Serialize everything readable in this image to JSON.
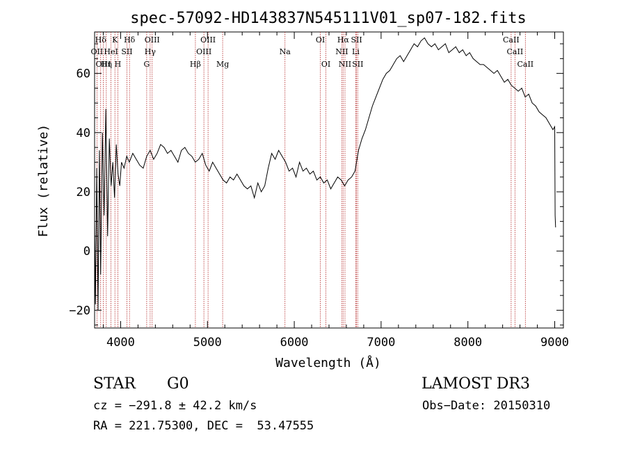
{
  "chart_data": {
    "type": "line",
    "title": "spec-57092-HD143837N545111V01_sp07-182.fits",
    "xlabel": "Wavelength (Å)",
    "ylabel": "Flux (relative)",
    "xlim": [
      3700,
      9100
    ],
    "ylim": [
      -26,
      74
    ],
    "xticks": [
      4000,
      5000,
      6000,
      7000,
      8000,
      9000
    ],
    "yticks": [
      -20,
      0,
      20,
      40,
      60
    ],
    "grid": false,
    "series": [
      {
        "name": "spectrum",
        "x": [
          3700,
          3710,
          3725,
          3740,
          3755,
          3770,
          3790,
          3810,
          3830,
          3850,
          3870,
          3890,
          3910,
          3930,
          3950,
          3970,
          3990,
          4010,
          4040,
          4070,
          4100,
          4140,
          4180,
          4220,
          4260,
          4300,
          4340,
          4380,
          4420,
          4460,
          4500,
          4540,
          4580,
          4620,
          4660,
          4700,
          4740,
          4780,
          4820,
          4860,
          4900,
          4940,
          4980,
          5020,
          5060,
          5100,
          5140,
          5180,
          5220,
          5260,
          5300,
          5340,
          5380,
          5420,
          5460,
          5500,
          5540,
          5580,
          5620,
          5660,
          5700,
          5740,
          5780,
          5820,
          5860,
          5900,
          5940,
          5980,
          6020,
          6060,
          6100,
          6140,
          6180,
          6220,
          6260,
          6300,
          6340,
          6380,
          6420,
          6460,
          6500,
          6540,
          6560,
          6580,
          6620,
          6660,
          6700,
          6740,
          6780,
          6820,
          6860,
          6900,
          6940,
          6980,
          7020,
          7060,
          7100,
          7140,
          7180,
          7220,
          7260,
          7300,
          7340,
          7380,
          7420,
          7460,
          7500,
          7540,
          7580,
          7620,
          7660,
          7700,
          7740,
          7780,
          7820,
          7860,
          7900,
          7940,
          7980,
          8020,
          8060,
          8100,
          8140,
          8180,
          8220,
          8260,
          8300,
          8340,
          8380,
          8420,
          8460,
          8500,
          8540,
          8580,
          8620,
          8660,
          8700,
          8740,
          8780,
          8820,
          8860,
          8900,
          8940,
          8980,
          9000,
          9005,
          9010
        ],
        "values": [
          10,
          -18,
          28,
          -20,
          34,
          -8,
          40,
          12,
          48,
          5,
          38,
          22,
          30,
          18,
          36,
          26,
          22,
          30,
          28,
          32,
          30,
          33,
          31,
          29,
          28,
          32,
          34,
          31,
          33,
          36,
          35,
          33,
          34,
          32,
          30,
          34,
          35,
          33,
          32,
          30,
          31,
          33,
          29,
          27,
          30,
          28,
          26,
          24,
          23,
          25,
          24,
          26,
          24,
          22,
          21,
          22,
          18,
          23,
          20,
          22,
          28,
          33,
          31,
          34,
          32,
          30,
          27,
          28,
          25,
          30,
          27,
          28,
          26,
          27,
          24,
          25,
          23,
          24,
          21,
          23,
          25,
          24,
          23,
          22,
          24,
          25,
          27,
          34,
          38,
          41,
          45,
          49,
          52,
          55,
          58,
          60,
          61,
          63,
          65,
          66,
          64,
          66,
          68,
          70,
          69,
          71,
          72,
          70,
          69,
          70,
          68,
          69,
          70,
          67,
          68,
          69,
          67,
          68,
          66,
          67,
          65,
          64,
          63,
          63,
          62,
          61,
          60,
          61,
          59,
          57,
          58,
          56,
          55,
          54,
          55,
          52,
          53,
          50,
          49,
          47,
          46,
          45,
          43,
          41,
          42,
          12,
          8
        ]
      }
    ],
    "spectral_lines": [
      {
        "label": "Hδ",
        "wavelength": 3770,
        "row": 1
      },
      {
        "label": "K",
        "wavelength": 3934,
        "row": 1
      },
      {
        "label": "Hδ",
        "wavelength": 4102,
        "row": 1
      },
      {
        "label": "OIII",
        "wavelength": 4363,
        "row": 1
      },
      {
        "label": "OIII",
        "wavelength": 5007,
        "row": 1
      },
      {
        "label": "OI",
        "wavelength": 6300,
        "row": 1
      },
      {
        "label": "Hα",
        "wavelength": 6563,
        "row": 1
      },
      {
        "label": "SII",
        "wavelength": 6717,
        "row": 1
      },
      {
        "label": "CaII",
        "wavelength": 8498,
        "row": 1
      },
      {
        "label": "OII",
        "wavelength": 3727,
        "row": 2
      },
      {
        "label": "HeI",
        "wavelength": 3889,
        "row": 2
      },
      {
        "label": "SII",
        "wavelength": 4072,
        "row": 2
      },
      {
        "label": "Hγ",
        "wavelength": 4340,
        "row": 2
      },
      {
        "label": "OIII",
        "wavelength": 4959,
        "row": 2
      },
      {
        "label": "NII",
        "wavelength": 6548,
        "row": 2
      },
      {
        "label": "Li",
        "wavelength": 6708,
        "row": 2
      },
      {
        "label": "CaII",
        "wavelength": 8542,
        "row": 2
      },
      {
        "label": "OIII",
        "wavelength": 3800,
        "row": 3
      },
      {
        "label": "Hη",
        "wavelength": 3835,
        "row": 3
      },
      {
        "label": "H",
        "wavelength": 3968,
        "row": 3
      },
      {
        "label": "G",
        "wavelength": 4300,
        "row": 3
      },
      {
        "label": "Hβ",
        "wavelength": 4861,
        "row": 3
      },
      {
        "label": "Mg",
        "wavelength": 5175,
        "row": 3
      },
      {
        "label": "Na",
        "wavelength": 5893,
        "row": 2
      },
      {
        "label": "OI",
        "wavelength": 6364,
        "row": 3
      },
      {
        "label": "NII",
        "wavelength": 6584,
        "row": 3
      },
      {
        "label": "SII",
        "wavelength": 6731,
        "row": 3
      },
      {
        "label": "CaII",
        "wavelength": 8662,
        "row": 3
      }
    ]
  },
  "info": {
    "object_class": "STAR",
    "subclass": "G0",
    "survey": "LAMOST DR3",
    "cz": "cz = −291.8 ± 42.2 km/s",
    "obs_date": "Obs−Date: 20150310",
    "coords": "RA = 221.75300, DEC =  53.47555"
  },
  "colors": {
    "line_marker": "#b22222",
    "spectrum": "#000000"
  }
}
